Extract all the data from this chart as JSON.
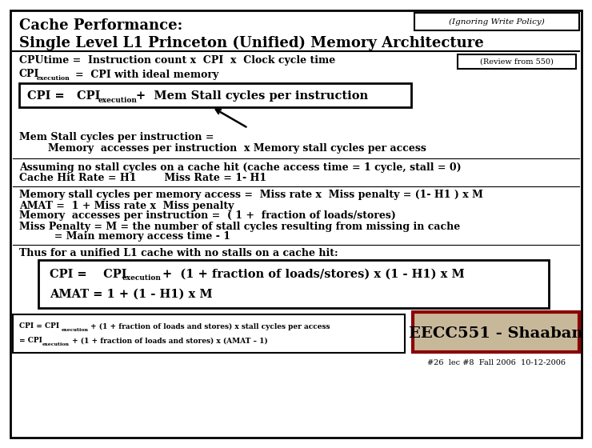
{
  "bg_color": "#ffffff",
  "border_color": "#000000",
  "title_line1": "Cache Performance:",
  "title_line2": "Single Level L1 Princeton (Unified) Memory Architecture",
  "ignoring_write_policy": "(Ignoring Write Policy)",
  "review_from_550": "(Review from 550)",
  "line_cpu": "CPUtime =  Instruction count x  CPI  x  Clock cycle time",
  "line_cpi_exec_main": "CPI",
  "line_cpi_exec_sub": "execution",
  "line_cpi_exec_rest": "  =  CPI with ideal memory",
  "box1_cpi": "CPI =   CPI",
  "box1_sub": "execution",
  "box1_rest": " +  Mem Stall cycles per instruction",
  "mem_stall_line": "Mem Stall cycles per instruction =",
  "mem_stall_indent": "Memory  accesses per instruction  x Memory stall cycles per access",
  "assuming_line": "Assuming no stall cycles on a cache hit (cache access time = 1 cycle, stall = 0)",
  "cache_hit_line": "Cache Hit Rate = H1        Miss Rate = 1- H1",
  "memory_stall_line": "Memory stall cycles per memory access =  Miss rate x  Miss penalty = (1- H1 ) x M",
  "amat_line": "AMAT =  1 + Miss rate x  Miss penalty",
  "memory_accesses_line": "Memory  accesses per instruction =  ( 1 +  fraction of loads/stores)",
  "miss_penalty_line": "Miss Penalty = M = the number of stall cycles resulting from missing in cache",
  "main_memory_line": "          = Main memory access time - 1",
  "thus_line": "Thus for a unified L1 cache with no stalls on a cache hit:",
  "box2_line1_a": "CPI =    CPI",
  "box2_line1_sub": "execution",
  "box2_line1_b": " +  (1 + fraction of loads/stores) x (1 - H1) x M",
  "box2_line2": "AMAT = 1 + (1 - H1) x M",
  "bot_line1_a": "CPI = CPI",
  "bot_line1_sub": "execution",
  "bot_line1_b": " + (1 + fraction of loads and stores) x stall cycles per access",
  "bot_line2_a": "= CPI",
  "bot_line2_sub": "execution",
  "bot_line2_b": " + (1 + fraction of loads and stores) x (AMAT – 1)",
  "eecc_text": "EECC551 - Shaaban",
  "footer_text": "#26  lec #8  Fall 2006  10-12-2006"
}
